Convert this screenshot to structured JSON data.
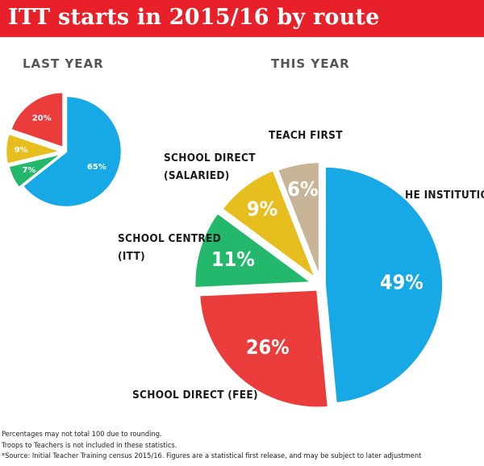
{
  "title": "ITT starts in 2015/16 by route",
  "chart_data": [
    {
      "type": "pie",
      "title": "LAST YEAR",
      "categories": [
        "HE Institution",
        "School Centred (ITT)",
        "School Direct (Salaried)",
        "School Direct (Fee)"
      ],
      "values": [
        65,
        7,
        9,
        20
      ],
      "data_labels": [
        "65%",
        "7%",
        "9%",
        "20%"
      ],
      "colors": [
        "#16a9e5",
        "#23b86b",
        "#e6bf1f",
        "#ea3d3b"
      ]
    },
    {
      "type": "pie",
      "title": "THIS YEAR",
      "categories": [
        "HE INSTITUTION",
        "SCHOOL DIRECT (FEE)",
        "SCHOOL CENTRED (ITT)",
        "SCHOOL DIRECT (SALARIED)",
        "TEACH FIRST"
      ],
      "values": [
        49,
        26,
        11,
        9,
        6
      ],
      "data_labels": [
        "49%",
        "26%",
        "11%",
        "9%",
        "6%"
      ],
      "category_labels": [
        [
          "HE INSTITUTION"
        ],
        [
          "SCHOOL DIRECT (FEE)"
        ],
        [
          "SCHOOL CENTRED",
          "(ITT)"
        ],
        [
          "SCHOOL DIRECT",
          "(SALARIED)"
        ],
        [
          "TEACH FIRST"
        ]
      ],
      "colors": [
        "#16a9e5",
        "#ea3d3b",
        "#23b86b",
        "#e6bf1f",
        "#c8b598"
      ]
    }
  ],
  "notes": [
    "Percentages may not total 100 due to rounding.",
    "Troops to Teachers is not included in these statistics.",
    "*Source: Initial Teacher Training census 2015/16. Figures are a statistical first release, and may be subject to later adjustment"
  ]
}
